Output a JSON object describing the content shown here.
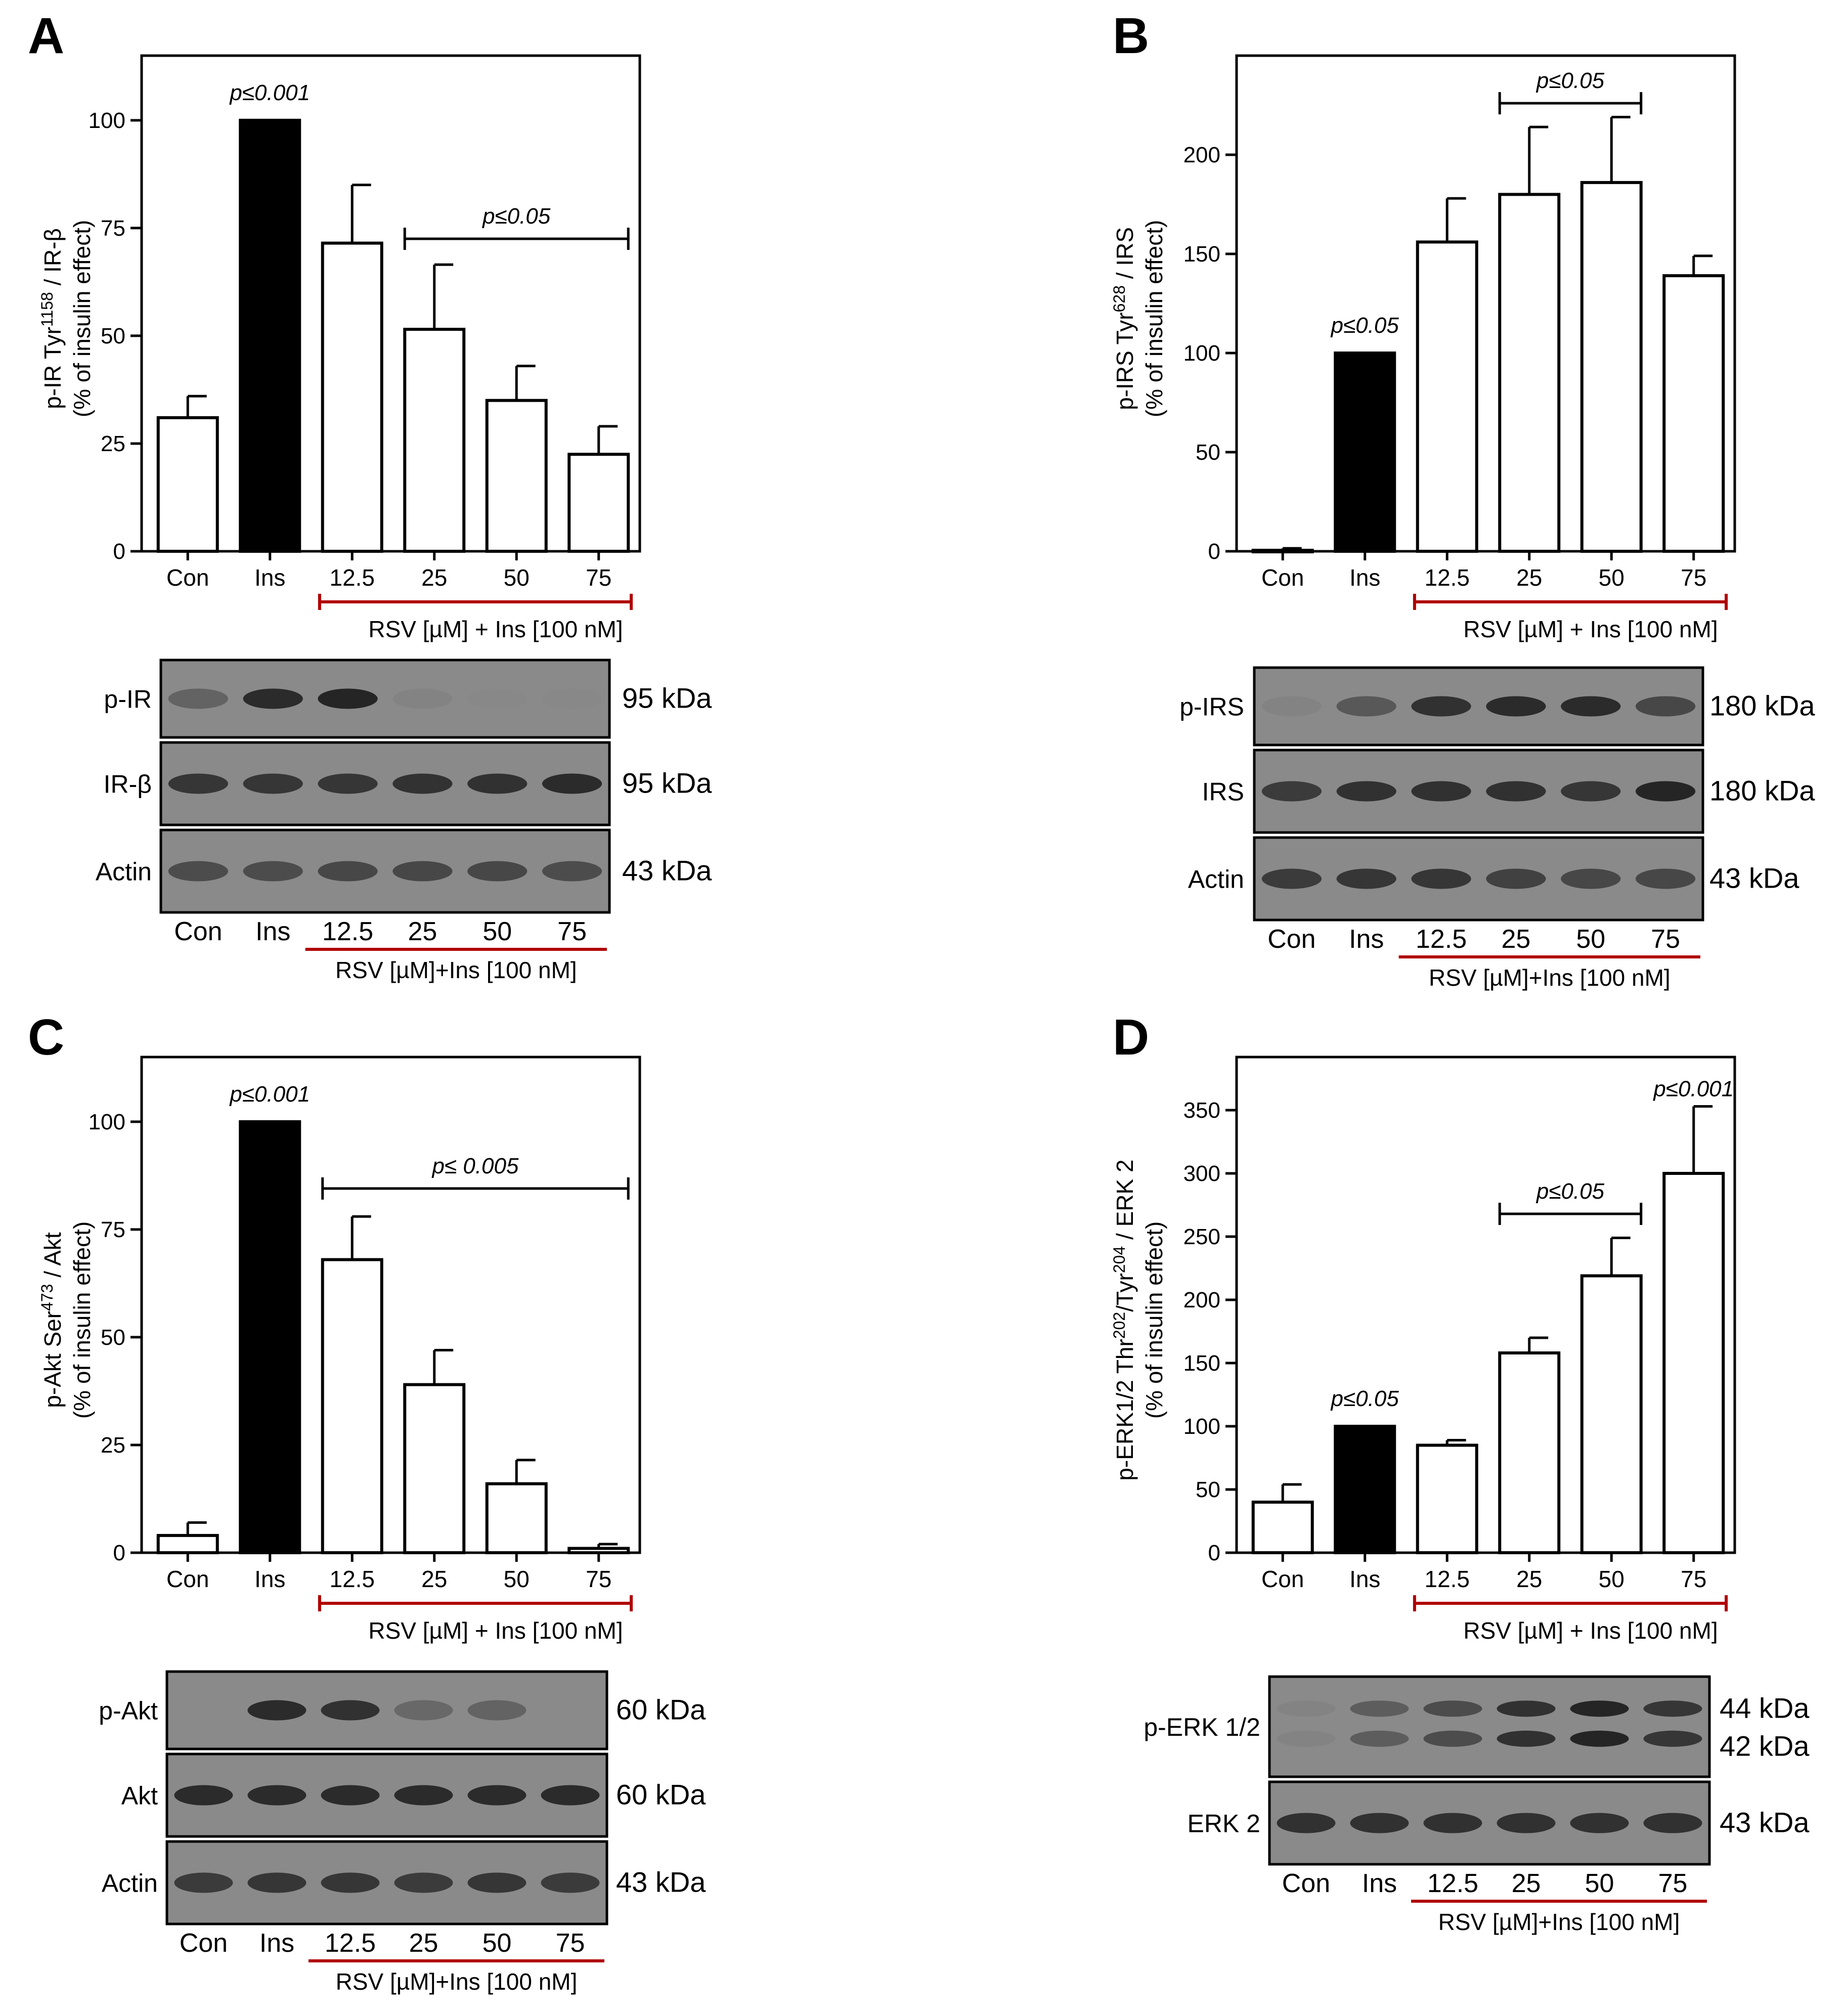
{
  "colors": {
    "bar_fill_open": "#ffffff",
    "bar_fill_ins": "#000000",
    "bracket_red": "#b00000",
    "blot_bg": "#8a8a8a",
    "band": "#1a1a1a"
  },
  "chart_data": [
    {
      "panel": "A",
      "type": "bar",
      "ylabel_main": "p-IR Tyr",
      "ylabel_sup": "1158",
      "ylabel_rest": " / IR-β",
      "ylabel2": "(% of insulin effect)",
      "categories": [
        "Con",
        "Ins",
        "12.5",
        "25",
        "50",
        "75"
      ],
      "values": [
        31,
        100,
        71.5,
        51.5,
        35,
        22.5
      ],
      "errors": [
        5,
        0,
        13.5,
        15,
        8,
        6.5
      ],
      "ins_index": 1,
      "ylim": [
        0,
        115
      ],
      "yticks": [
        0,
        25,
        50,
        75,
        100
      ],
      "ytick_labels": [
        "0",
        "25",
        "50",
        "75",
        "100"
      ],
      "rsv_label": "RSV [µM] + Ins [100 nM]",
      "annotations": [
        {
          "text": "p≤0.001",
          "type": "above_bar",
          "index": 1
        },
        {
          "text": "p≤0.05",
          "type": "bracket",
          "from": 3,
          "to": 5,
          "y": 72.5
        }
      ],
      "blot": {
        "rows": [
          {
            "label": "p-IR",
            "kda": "95 kDa",
            "intensity": [
              0.35,
              0.85,
              0.9,
              0.05,
              0.02,
              0.02
            ]
          },
          {
            "label": "IR-β",
            "kda": "95 kDa",
            "intensity": [
              0.75,
              0.75,
              0.75,
              0.78,
              0.8,
              0.85
            ]
          },
          {
            "label": "Actin",
            "kda": "43 kDa",
            "intensity": [
              0.55,
              0.55,
              0.6,
              0.6,
              0.6,
              0.55
            ]
          }
        ],
        "lanes": [
          "Con",
          "Ins",
          "12.5",
          "25",
          "50",
          "75"
        ],
        "treatment_label": "RSV [µM]+Ins [100 nM]"
      }
    },
    {
      "panel": "B",
      "type": "bar",
      "ylabel_main": "p-IRS Tyr",
      "ylabel_sup": "628",
      "ylabel_rest": " / IRS",
      "ylabel2": "(% of insulin effect)",
      "categories": [
        "Con",
        "Ins",
        "12.5",
        "25",
        "50",
        "75"
      ],
      "values": [
        0.5,
        100,
        156,
        180,
        186,
        139
      ],
      "errors": [
        1,
        0,
        22,
        34,
        33,
        10
      ],
      "ins_index": 1,
      "ylim": [
        0,
        250
      ],
      "yticks": [
        0,
        50,
        100,
        150,
        200
      ],
      "ytick_labels": [
        "0",
        "50",
        "100",
        "150",
        "200"
      ],
      "rsv_label": "RSV [µM] + Ins [100 nM]",
      "annotations": [
        {
          "text": "p≤0.05",
          "type": "above_bar",
          "index": 1
        },
        {
          "text": "p≤0.05",
          "type": "bracket",
          "from": 3,
          "to": 4,
          "y": 226
        }
      ],
      "blot": {
        "rows": [
          {
            "label": "p-IRS",
            "kda": "180 kDa",
            "intensity": [
              0.05,
              0.45,
              0.8,
              0.85,
              0.85,
              0.6
            ]
          },
          {
            "label": "IRS",
            "kda": "180 kDa",
            "intensity": [
              0.7,
              0.8,
              0.8,
              0.8,
              0.75,
              0.9
            ]
          },
          {
            "label": "Actin",
            "kda": "43 kDa",
            "intensity": [
              0.7,
              0.75,
              0.75,
              0.65,
              0.6,
              0.6
            ]
          }
        ],
        "lanes": [
          "Con",
          "Ins",
          "12.5",
          "25",
          "50",
          "75"
        ],
        "treatment_label": "RSV [µM]+Ins [100 nM]"
      }
    },
    {
      "panel": "C",
      "type": "bar",
      "ylabel_main": "p-Akt Ser",
      "ylabel_sup": "473",
      "ylabel_rest": " / Akt",
      "ylabel2": "(% of insulin effect)",
      "categories": [
        "Con",
        "Ins",
        "12.5",
        "25",
        "50",
        "75"
      ],
      "values": [
        4,
        100,
        68,
        39,
        16,
        1
      ],
      "errors": [
        3,
        0,
        10,
        8,
        5.5,
        1
      ],
      "ins_index": 1,
      "ylim": [
        0,
        115
      ],
      "yticks": [
        0,
        25,
        50,
        75,
        100
      ],
      "ytick_labels": [
        "0",
        "25",
        "50",
        "75",
        "100"
      ],
      "rsv_label": "RSV [µM] + Ins [100 nM]",
      "annotations": [
        {
          "text": "p≤0.001",
          "type": "above_bar",
          "index": 1
        },
        {
          "text": "p≤ 0.005",
          "type": "bracket",
          "from": 2,
          "to": 5,
          "y": 84.5
        }
      ],
      "blot": {
        "rows": [
          {
            "label": "p-Akt",
            "kda": "60 kDa",
            "intensity": [
              0.0,
              0.85,
              0.8,
              0.3,
              0.35,
              0.0
            ]
          },
          {
            "label": "Akt",
            "kda": "60 kDa",
            "intensity": [
              0.85,
              0.85,
              0.85,
              0.85,
              0.85,
              0.85
            ]
          },
          {
            "label": "Actin",
            "kda": "43 kDa",
            "intensity": [
              0.7,
              0.75,
              0.75,
              0.7,
              0.75,
              0.7
            ]
          }
        ],
        "lanes": [
          "Con",
          "Ins",
          "12.5",
          "25",
          "50",
          "75"
        ],
        "treatment_label": "RSV [µM]+Ins [100 nM]"
      }
    },
    {
      "panel": "D",
      "type": "bar",
      "ylabel_main": "p-ERK1/2 Thr",
      "ylabel_sup": "202",
      "ylabel_rest": "/Tyr",
      "ylabel_sup2": "204",
      "ylabel_rest2": " / ERK 2",
      "ylabel2": "(% of insulin effect)",
      "categories": [
        "Con",
        "Ins",
        "12.5",
        "25",
        "50",
        "75"
      ],
      "values": [
        40,
        100,
        85,
        158,
        219,
        300
      ],
      "errors": [
        14,
        0,
        4,
        12,
        30,
        53
      ],
      "ins_index": 1,
      "ylim": [
        0,
        392
      ],
      "yticks": [
        0,
        50,
        100,
        150,
        200,
        250,
        300,
        350
      ],
      "ytick_labels": [
        "0",
        "50",
        "100",
        "150",
        "200",
        "250",
        "300",
        "350"
      ],
      "rsv_label": "RSV [µM] + Ins [100 nM]",
      "annotations": [
        {
          "text": "p≤0.05",
          "type": "above_bar",
          "index": 1
        },
        {
          "text": "p≤0.05",
          "type": "bracket",
          "from": 3,
          "to": 4,
          "y": 268
        },
        {
          "text": "p≤0.001",
          "type": "above_err",
          "index": 5
        }
      ],
      "blot": {
        "rows": [
          {
            "label": "p-ERK 1/2",
            "kda": "44 kDa",
            "kda2": "42 kDa",
            "double": true,
            "intensity": [
              0.05,
              0.4,
              0.55,
              0.8,
              0.9,
              0.75
            ]
          },
          {
            "label": "ERK 2",
            "kda": "43 kDa",
            "intensity": [
              0.8,
              0.8,
              0.8,
              0.8,
              0.8,
              0.8
            ]
          }
        ],
        "lanes": [
          "Con",
          "Ins",
          "12.5",
          "25",
          "50",
          "75"
        ],
        "treatment_label": "RSV [µM]+Ins [100 nM]"
      }
    }
  ]
}
